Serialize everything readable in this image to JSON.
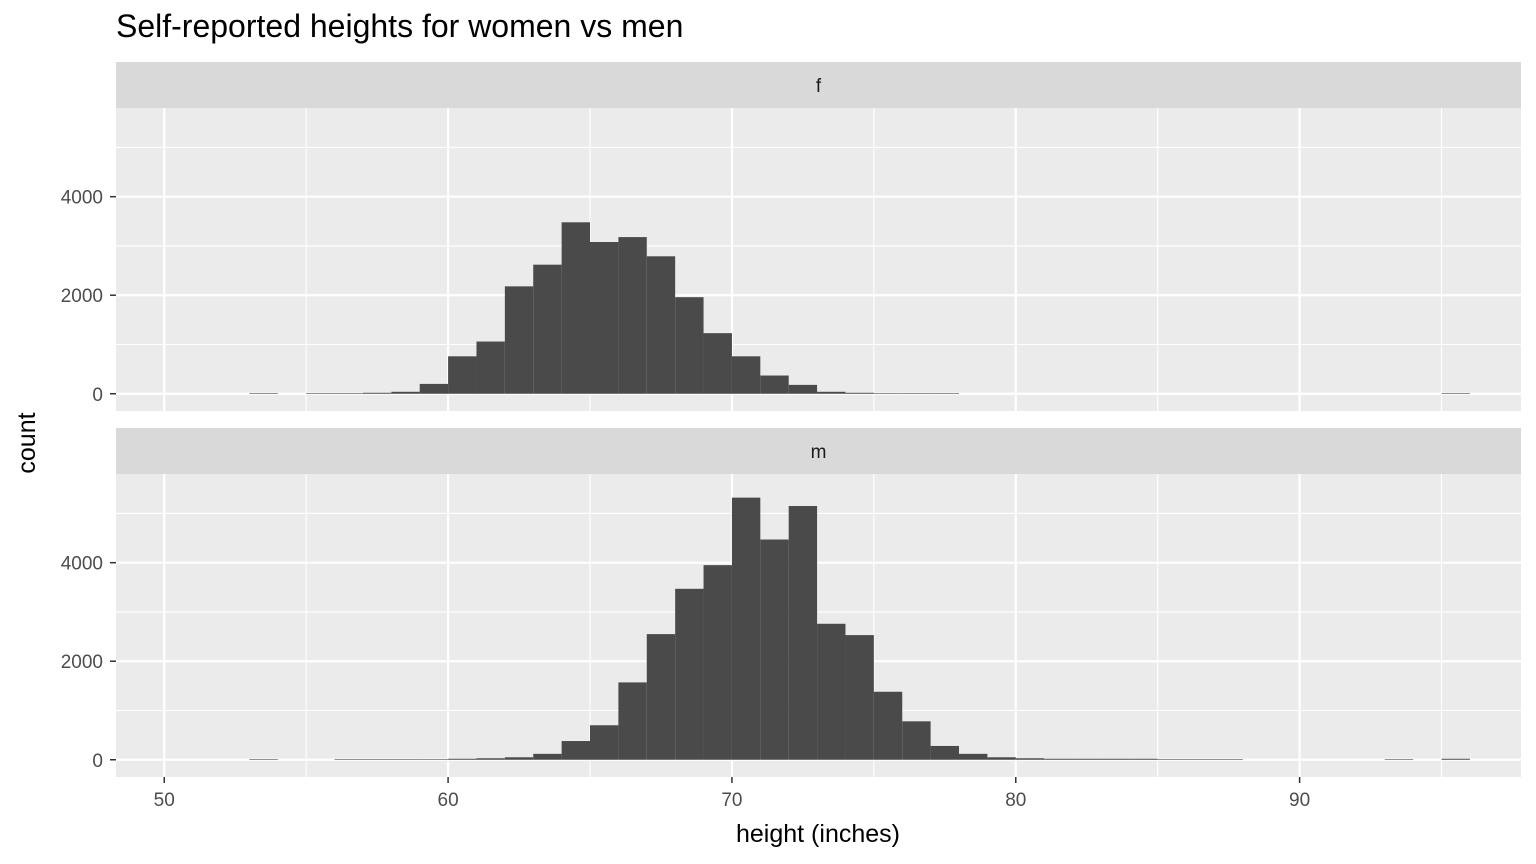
{
  "chart_data": {
    "type": "bar",
    "title": "Self-reported heights for women vs men",
    "xlabel": "height (inches)",
    "ylabel": "count",
    "xlim": [
      48.3,
      97.8
    ],
    "ylim": [
      -350,
      5800
    ],
    "x_ticks": [
      50,
      60,
      70,
      80,
      90
    ],
    "y_ticks": [
      0,
      2000,
      4000
    ],
    "grid": true,
    "bin_width": 1,
    "bin_starts": [
      50,
      51,
      52,
      53,
      54,
      55,
      56,
      57,
      58,
      59,
      60,
      61,
      62,
      63,
      64,
      65,
      66,
      67,
      68,
      69,
      70,
      71,
      72,
      73,
      74,
      75,
      76,
      77,
      78,
      79,
      80,
      81,
      82,
      83,
      84,
      85,
      86,
      87,
      88,
      89,
      90,
      91,
      92,
      93,
      94,
      95
    ],
    "series": [
      {
        "name": "f",
        "values": [
          0,
          0,
          0,
          5,
          0,
          5,
          10,
          20,
          40,
          200,
          760,
          1060,
          2180,
          2620,
          3480,
          3080,
          3180,
          2790,
          1960,
          1230,
          760,
          370,
          180,
          40,
          20,
          10,
          5,
          5,
          0,
          0,
          0,
          0,
          0,
          0,
          0,
          0,
          0,
          0,
          0,
          0,
          0,
          0,
          0,
          0,
          0,
          5
        ]
      },
      {
        "name": "m",
        "values": [
          0,
          0,
          0,
          5,
          0,
          0,
          5,
          5,
          10,
          10,
          20,
          30,
          50,
          120,
          380,
          700,
          1570,
          2550,
          3470,
          3950,
          5320,
          4470,
          5150,
          2760,
          2530,
          1380,
          780,
          280,
          120,
          50,
          30,
          20,
          20,
          20,
          20,
          10,
          5,
          5,
          0,
          0,
          0,
          0,
          0,
          5,
          0,
          20
        ]
      }
    ]
  }
}
